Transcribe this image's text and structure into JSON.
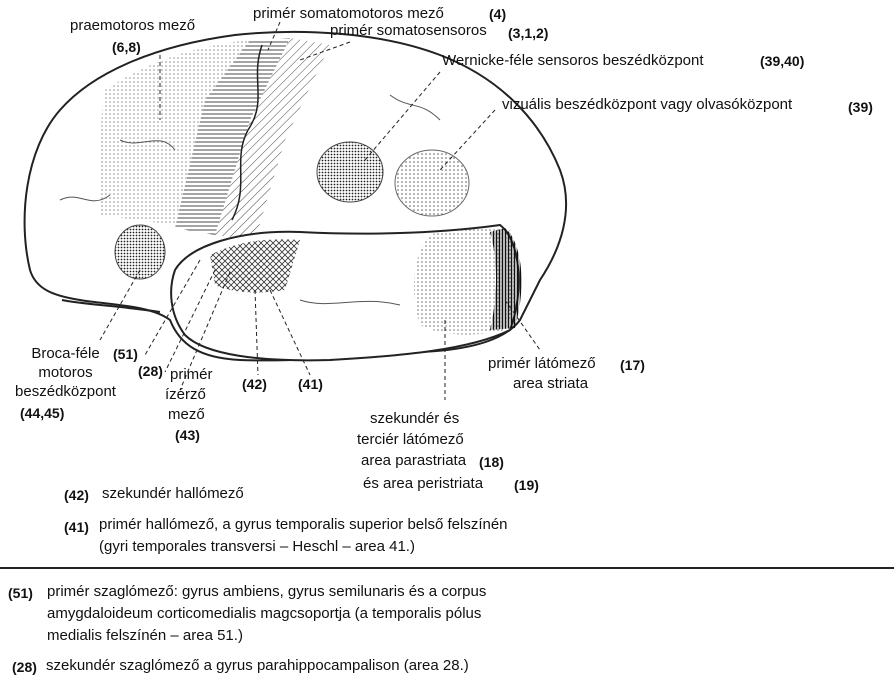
{
  "labels": {
    "praemotor": "praemotoros mező",
    "praemotor_num": "(6,8)",
    "somatomotor": "primér somatomotoros mező",
    "somatomotor_num": "(4)",
    "somatosens": "primér somatosensoros",
    "somatosens_num": "(3,1,2)",
    "wernicke": "Wernicke-féle sensoros beszédközpont",
    "wernicke_num": "(39,40)",
    "visual_speech": "vizuális beszédközpont vagy olvasóközpont",
    "visual_speech_num": "(39)",
    "broca_l1": "Broca-féle",
    "broca_l2": "motoros",
    "broca_l3": "beszédközpont",
    "broca_num": "(44,45)",
    "n51": "(51)",
    "n28": "(28)",
    "taste_l1": "primér",
    "taste_l2": "ízérző",
    "taste_l3": "mező",
    "taste_num": "(43)",
    "n42": "(42)",
    "n41": "(41)",
    "visual_l1": "primér látómező",
    "visual_num": "(17)",
    "visual_l2": "area striata",
    "sec_l1": "szekundér és",
    "sec_l2": "terciér látómező",
    "sec_l3": "area parastriata",
    "sec_num1": "(18)",
    "sec_l4": "és area peristriata",
    "sec_num2": "(19)"
  },
  "legend_top": [
    {
      "num": "(42)",
      "text": "szekundér hallómező"
    },
    {
      "num": "(41)",
      "text": "primér hallómező, a gyrus temporalis superior belső felszínén",
      "text2": "(gyri temporales transversi – Heschl – area 41.)"
    }
  ],
  "legend_bottom": [
    {
      "num": "(51)",
      "text": "primér szaglómező: gyrus ambiens, gyrus semilunaris és a corpus",
      "text2": "amygdaloideum corticomedialis magcsoportja (a temporalis pólus",
      "text3": "medialis felszínén – area 51.)"
    },
    {
      "num": "(28)",
      "text": "szekundér szaglómező a gyrus parahippocampalison (area 28.)"
    }
  ]
}
